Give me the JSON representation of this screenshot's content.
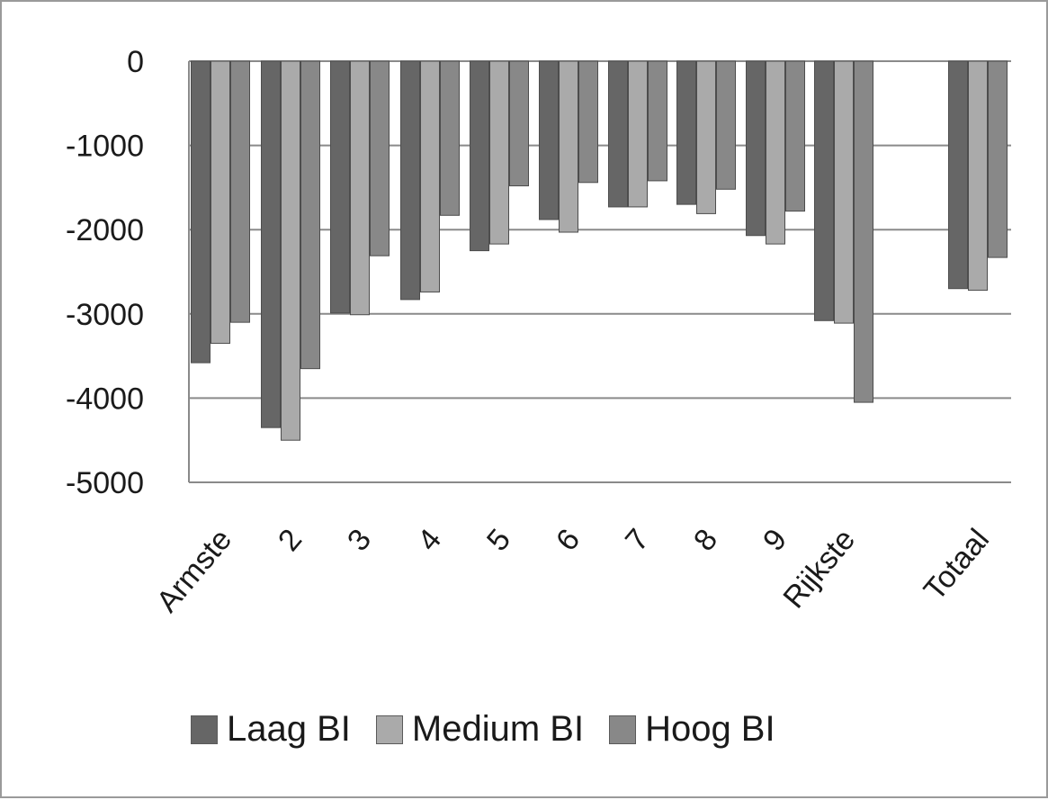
{
  "chart_data": {
    "type": "bar",
    "categories": [
      "Armste",
      "2",
      "3",
      "4",
      "5",
      "6",
      "7",
      "8",
      "9",
      "Rijkste",
      "Totaal"
    ],
    "series": [
      {
        "name": "Laag BI",
        "color": "#666666",
        "values": [
          -3580,
          -4350,
          -2990,
          -2830,
          -2250,
          -1880,
          -1730,
          -1700,
          -2070,
          -3080,
          -2700
        ]
      },
      {
        "name": "Medium BI",
        "color": "#aaaaaa",
        "values": [
          -3350,
          -4500,
          -3010,
          -2740,
          -2170,
          -2030,
          -1730,
          -1810,
          -2170,
          -3110,
          -2720
        ]
      },
      {
        "name": "Hoog BI",
        "color": "#888888",
        "values": [
          -3100,
          -3650,
          -2310,
          -1830,
          -1480,
          -1440,
          -1420,
          -1520,
          -1780,
          -4050,
          -2330
        ]
      }
    ],
    "yticks": [
      0,
      -1000,
      -2000,
      -3000,
      -4000,
      -5000
    ],
    "ylim": [
      -5000,
      0
    ],
    "grid": true,
    "legend": "bottom",
    "title": "",
    "xlabel": "",
    "ylabel": ""
  }
}
